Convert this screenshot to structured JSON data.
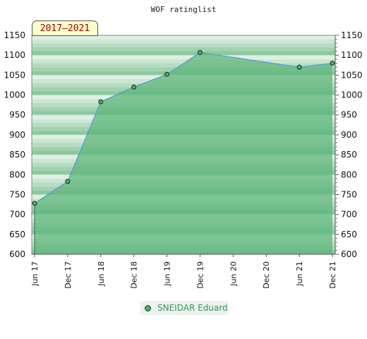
{
  "chart_data": {
    "type": "area",
    "title": "WOF ratinglist",
    "period": "2017–2021",
    "x_ticks": [
      "Jun 17",
      "Dec 17",
      "Jun 18",
      "Dec 18",
      "Jun 19",
      "Dec 19",
      "Jun 20",
      "Dec 20",
      "Jun 21",
      "Dec 21"
    ],
    "ylim": [
      600,
      1150
    ],
    "y_ticks": [
      600,
      650,
      700,
      750,
      800,
      850,
      900,
      950,
      1000,
      1050,
      1100,
      1150
    ],
    "series": [
      {
        "name": "SNEIDAR Eduard",
        "color": "#55aa66",
        "line_color": "#5599dd",
        "points": [
          {
            "x": 0,
            "y": 728
          },
          {
            "x": 1,
            "y": 783
          },
          {
            "x": 2,
            "y": 983
          },
          {
            "x": 3,
            "y": 1020
          },
          {
            "x": 4,
            "y": 1052
          },
          {
            "x": 5,
            "y": 1107
          },
          {
            "x": 8,
            "y": 1070
          },
          {
            "x": 9,
            "y": 1080
          }
        ]
      }
    ],
    "grid": true,
    "legend_position": "bottom"
  }
}
